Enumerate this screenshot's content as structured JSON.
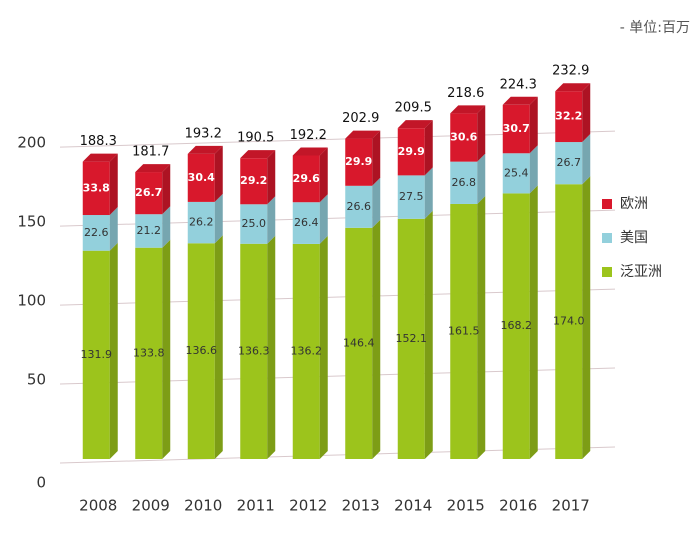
{
  "chart_data": {
    "type": "bar",
    "stacked": true,
    "unit": "- 单位:百万",
    "categories": [
      "2008",
      "2009",
      "2010",
      "2011",
      "2012",
      "2013",
      "2014",
      "2015",
      "2016",
      "2017"
    ],
    "series": [
      {
        "name": "泛亚洲",
        "color": "#9cc41c",
        "values": [
          131.9,
          133.8,
          136.6,
          136.3,
          136.2,
          146.4,
          152.1,
          161.5,
          168.2,
          174.0
        ],
        "value_labels": [
          "131.9",
          "133.8",
          "136.6",
          "136.3",
          "136.2",
          "146.4",
          "152.1",
          "161.5",
          "168.2",
          "174.0"
        ]
      },
      {
        "name": "美国",
        "color": "#93d0dc",
        "values": [
          22.6,
          21.2,
          26.2,
          25.0,
          26.4,
          26.6,
          27.5,
          26.8,
          25.4,
          26.7
        ],
        "value_labels": [
          "22.6",
          "21.2",
          "26.2",
          "25.0",
          "26.4",
          "26.6",
          "27.5",
          "26.8",
          "25.4",
          "26.7"
        ]
      },
      {
        "name": "欧洲",
        "color": "#d8182c",
        "values": [
          33.8,
          26.7,
          30.4,
          29.2,
          29.6,
          29.9,
          29.9,
          30.6,
          30.7,
          32.2
        ]
      }
    ],
    "totals": [
      188.3,
      181.7,
      193.2,
      190.5,
      192.2,
      202.9,
      209.5,
      218.6,
      224.3,
      232.9
    ],
    "ylim": [
      0,
      240
    ],
    "yticks": [
      0,
      50,
      100,
      150,
      200
    ],
    "grid": true,
    "legend": "right"
  }
}
